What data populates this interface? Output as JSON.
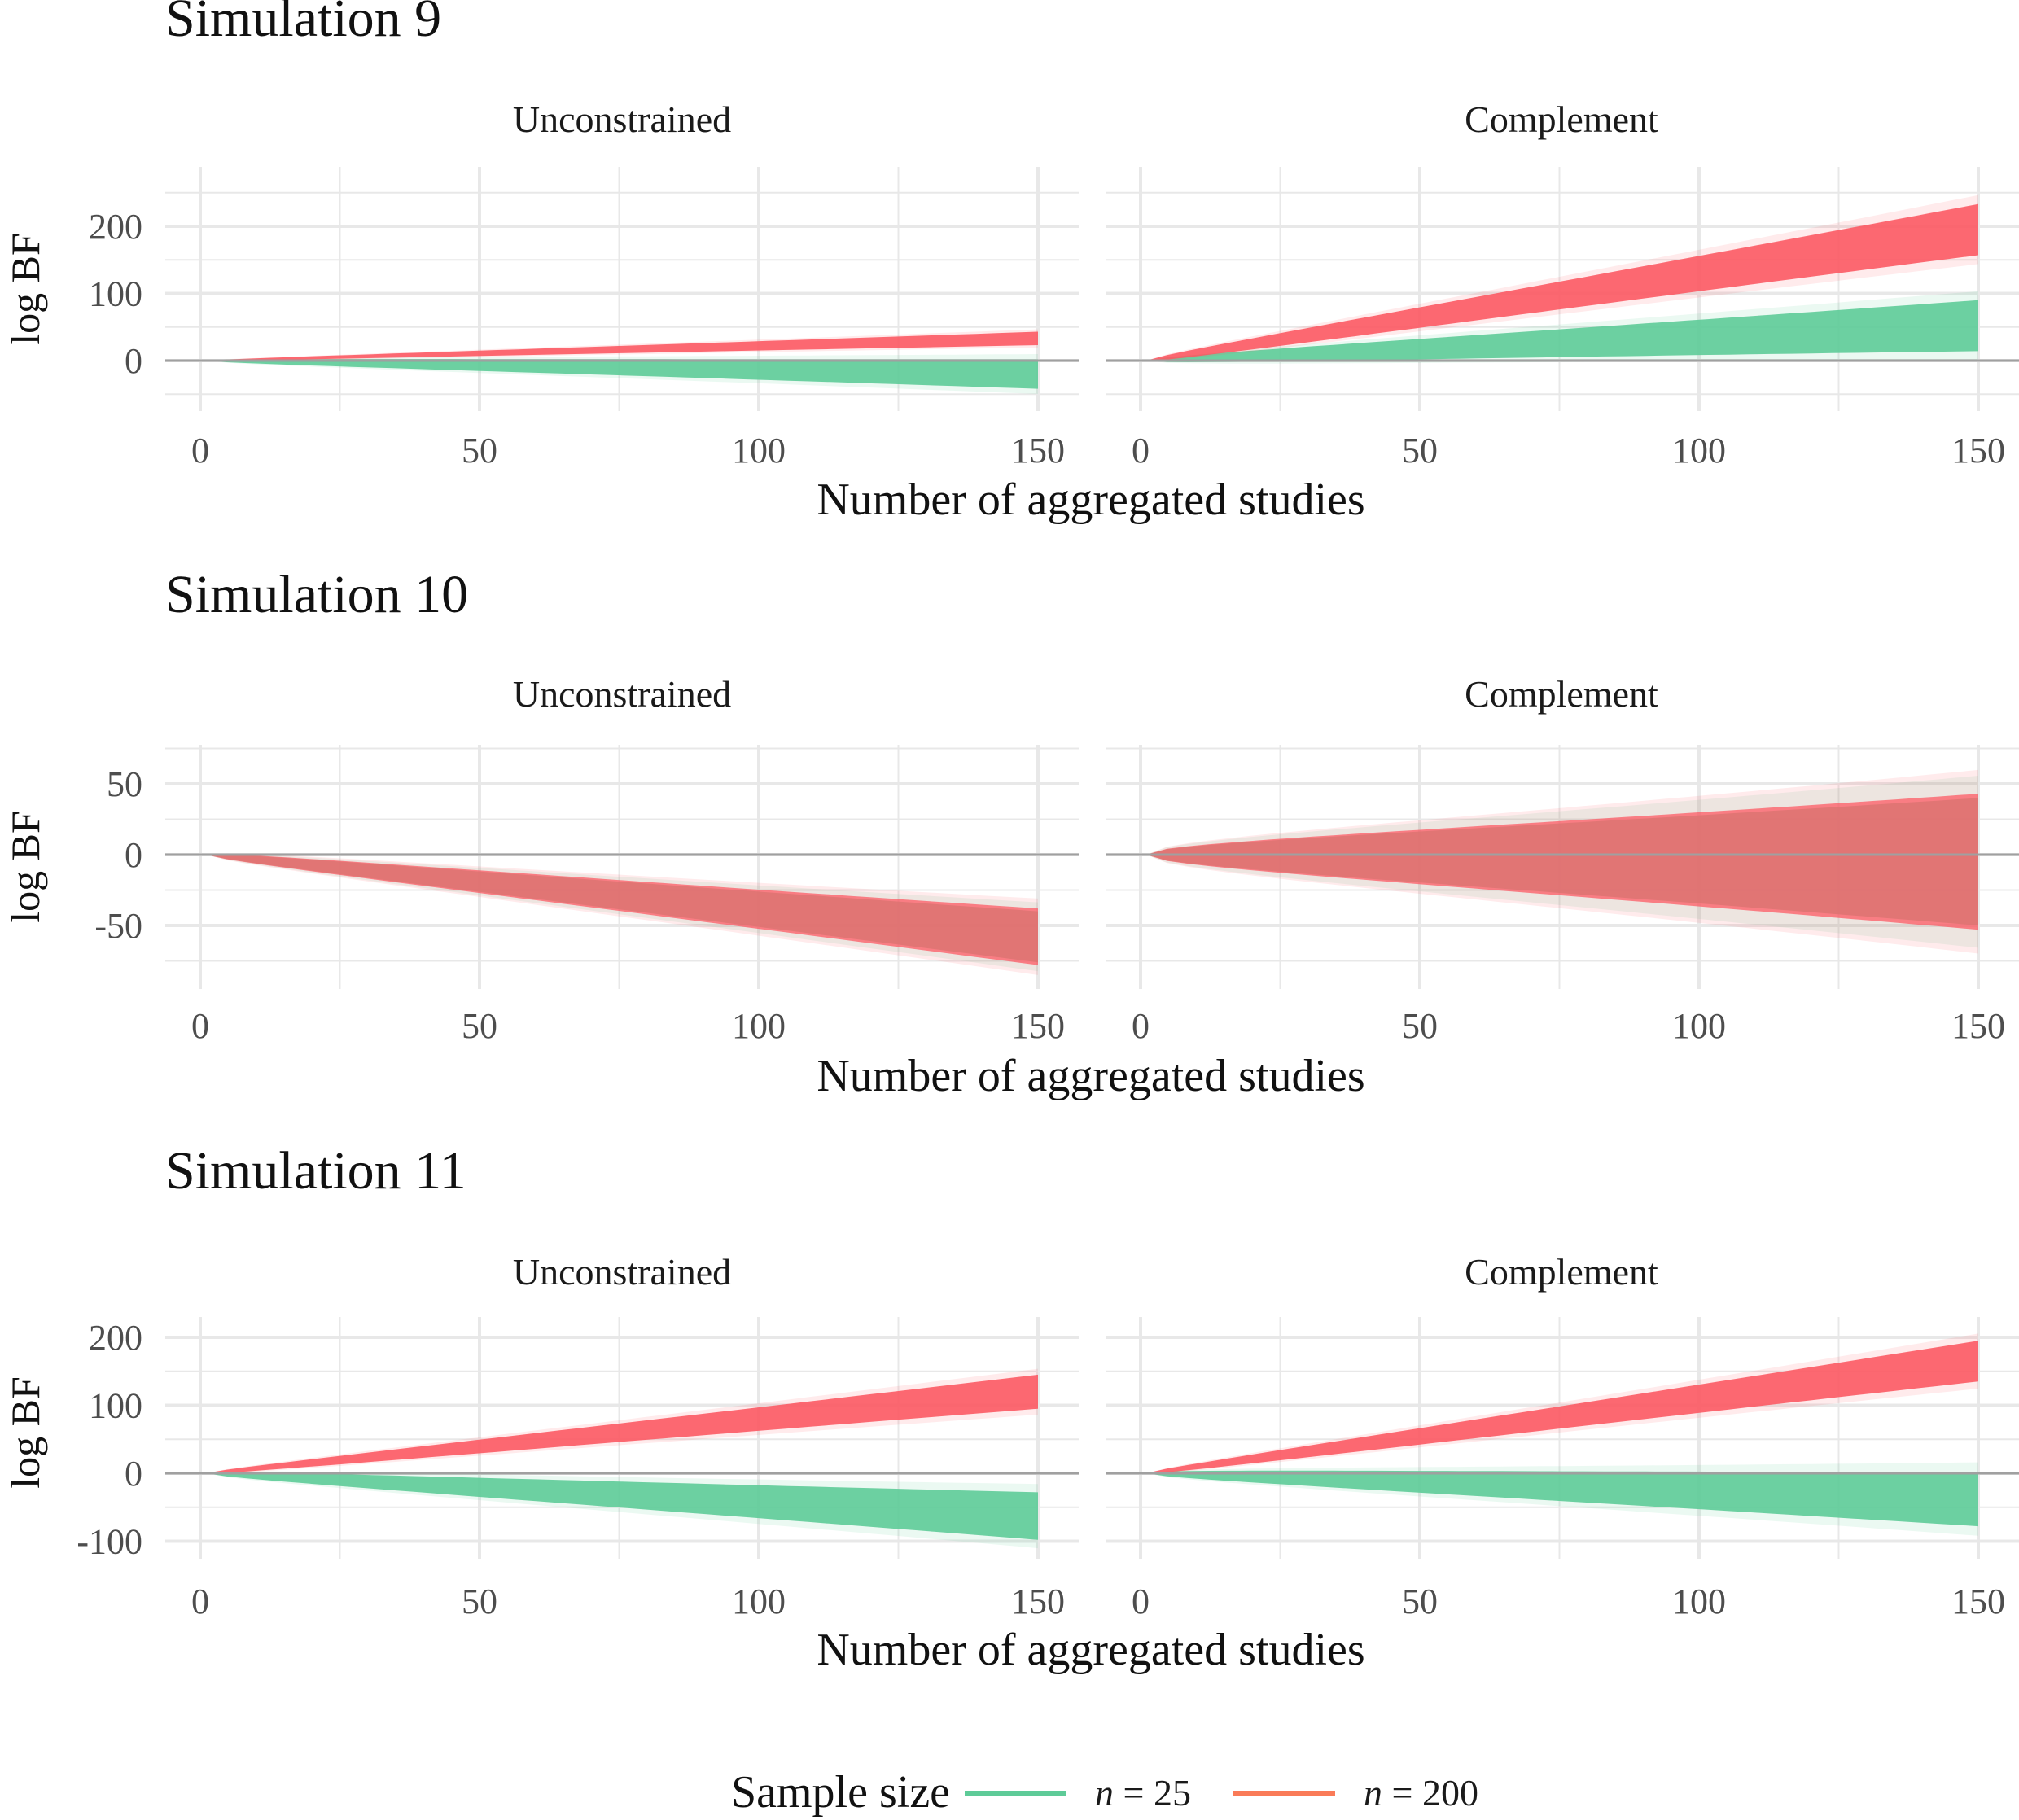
{
  "chart_data": [
    {
      "title": "Simulation 9",
      "type": "area",
      "xlabel": "Number of aggregated studies",
      "ylabel": "log BF",
      "xlim": [
        0,
        150
      ],
      "ylim": [
        -50,
        250
      ],
      "xticks": [
        0,
        50,
        100,
        150
      ],
      "yticks": [
        0,
        100,
        200
      ],
      "grid": true,
      "panels": [
        {
          "strip": "Unconstrained",
          "series": [
            {
              "legend_ref": 0,
              "x": [
                1,
                150
              ],
              "center": [
                0,
                -20
              ],
              "spread": [
                0,
                22
              ]
            },
            {
              "legend_ref": 1,
              "x": [
                1,
                150
              ],
              "center": [
                0,
                33
              ],
              "spread": [
                0,
                10
              ]
            }
          ]
        },
        {
          "strip": "Complement",
          "series": [
            {
              "legend_ref": 0,
              "x": [
                1,
                150
              ],
              "center": [
                0,
                52
              ],
              "spread": [
                0,
                38
              ]
            },
            {
              "legend_ref": 1,
              "x": [
                1,
                150
              ],
              "center": [
                0,
                195
              ],
              "spread": [
                0,
                38
              ]
            }
          ]
        }
      ]
    },
    {
      "title": "Simulation 10",
      "type": "area",
      "xlabel": "Number of aggregated studies",
      "ylabel": "log BF",
      "xlim": [
        0,
        150
      ],
      "ylim": [
        -80,
        80
      ],
      "xticks": [
        0,
        50,
        100,
        150
      ],
      "yticks": [
        -50,
        0,
        50
      ],
      "grid": true,
      "panels": [
        {
          "strip": "Unconstrained",
          "series": [
            {
              "legend_ref": 0,
              "x": [
                1,
                150
              ],
              "center": [
                0,
                -58
              ],
              "spread": [
                0,
                18
              ]
            },
            {
              "legend_ref": 1,
              "x": [
                1,
                150
              ],
              "center": [
                0,
                -58
              ],
              "spread": [
                0,
                20
              ]
            }
          ]
        },
        {
          "strip": "Complement",
          "series": [
            {
              "legend_ref": 0,
              "x": [
                1,
                150
              ],
              "center": [
                0,
                -5
              ],
              "spread": [
                0,
                45
              ]
            },
            {
              "legend_ref": 1,
              "x": [
                1,
                150
              ],
              "center": [
                0,
                -5
              ],
              "spread": [
                0,
                48
              ]
            }
          ]
        }
      ]
    },
    {
      "title": "Simulation 11",
      "type": "area",
      "xlabel": "Number of aggregated studies",
      "ylabel": "log BF",
      "xlim": [
        0,
        150
      ],
      "ylim": [
        -120,
        240
      ],
      "xticks": [
        0,
        50,
        100,
        150
      ],
      "yticks": [
        -100,
        0,
        100,
        200
      ],
      "grid": true,
      "panels": [
        {
          "strip": "Unconstrained",
          "series": [
            {
              "legend_ref": 0,
              "x": [
                1,
                150
              ],
              "center": [
                0,
                -63
              ],
              "spread": [
                0,
                35
              ]
            },
            {
              "legend_ref": 1,
              "x": [
                1,
                150
              ],
              "center": [
                0,
                120
              ],
              "spread": [
                0,
                25
              ]
            }
          ]
        },
        {
          "strip": "Complement",
          "series": [
            {
              "legend_ref": 0,
              "x": [
                1,
                150
              ],
              "center": [
                0,
                -38
              ],
              "spread": [
                0,
                40
              ]
            },
            {
              "legend_ref": 1,
              "x": [
                1,
                150
              ],
              "center": [
                0,
                165
              ],
              "spread": [
                0,
                30
              ]
            }
          ]
        }
      ]
    }
  ],
  "legend": {
    "title": "Sample size",
    "placement": "bottom",
    "items": [
      {
        "prefix": "n",
        "label": " = 25",
        "color": "#5ecb98"
      },
      {
        "prefix": "n",
        "label": " = 200",
        "color": "#fa7b58"
      }
    ]
  },
  "colors": {
    "band_n25": "#5ecb98",
    "band_n200": "#fc5a64",
    "band_mixed": "#d8655f",
    "grid": "#e8e8e8",
    "zero_line": "#a0a0a0",
    "tick_text": "#4d4d4d"
  }
}
